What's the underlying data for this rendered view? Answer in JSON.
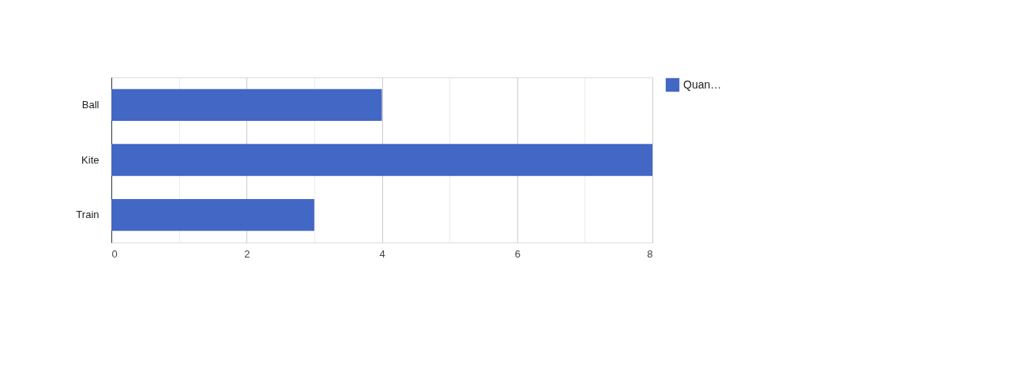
{
  "chart_data": {
    "type": "bar",
    "orientation": "horizontal",
    "categories": [
      "Ball",
      "Kite",
      "Train"
    ],
    "series": [
      {
        "name": "Quan…",
        "color": "#4267c5",
        "values": [
          4,
          8,
          3
        ]
      }
    ],
    "xlim": [
      0,
      8
    ],
    "xticks": [
      0,
      {
        "value": 1,
        "label": null
      },
      2,
      {
        "value": 3,
        "label": null
      },
      4,
      {
        "value": 5,
        "label": null
      },
      6,
      {
        "value": 7,
        "label": null
      },
      8
    ],
    "grid": "x",
    "legend": "top right"
  }
}
